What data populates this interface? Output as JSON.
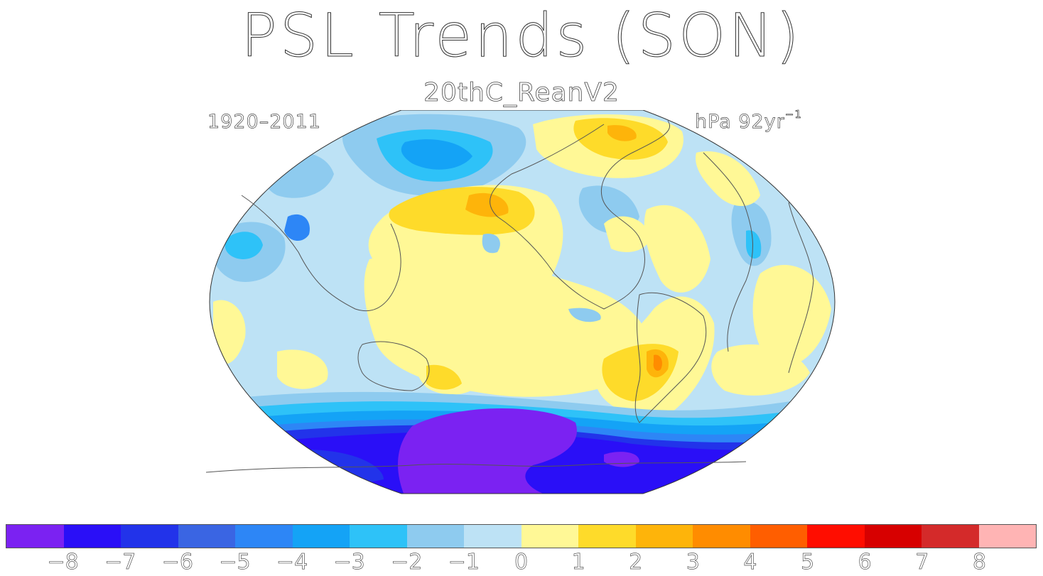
{
  "title": "PSL Trends (SON)",
  "subtitle": "20thC_ReanV2",
  "period": "1920–2011",
  "units": {
    "base": "hPa 92yr",
    "exponent": "−1"
  },
  "projection": "elliptical global map centered on the Pacific",
  "colorbar": {
    "colors": [
      "#7b22f2",
      "#2a0ff7",
      "#2233ea",
      "#3a65e3",
      "#2d86f6",
      "#14a3f6",
      "#2ec2f8",
      "#8ecbef",
      "#bde2f5",
      "#fff896",
      "#fedb2a",
      "#feb40a",
      "#ff8c00",
      "#ff5e00",
      "#ff0d00",
      "#d70000",
      "#d42a2a",
      "#ffb4b4"
    ],
    "tick_labels": [
      "−8",
      "−7",
      "−6",
      "−5",
      "−4",
      "−3",
      "−2",
      "−1",
      "0",
      "1",
      "2",
      "3",
      "4",
      "5",
      "6",
      "7",
      "8"
    ]
  }
}
